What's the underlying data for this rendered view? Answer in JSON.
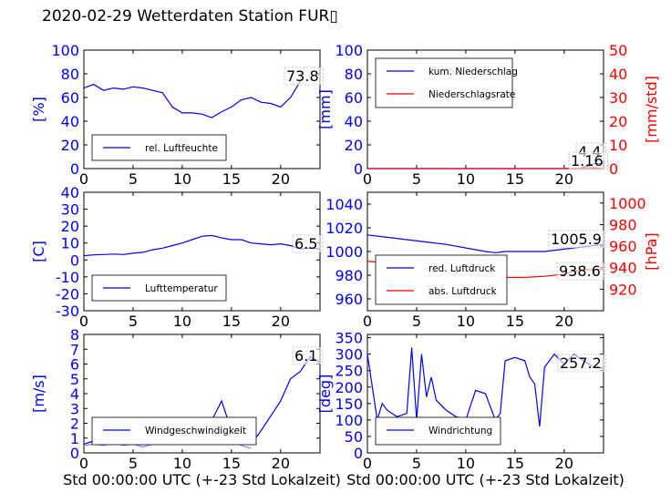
{
  "page_title": "2020-02-29 Wetterdaten Station FUR▯",
  "chart_data": [
    {
      "type": "line",
      "ylabel": "[%]",
      "xlim": [
        0,
        24
      ],
      "ylim": [
        0,
        100
      ],
      "xticks": [
        0,
        5,
        10,
        15,
        20
      ],
      "yticks": [
        0,
        20,
        40,
        60,
        80,
        100
      ],
      "annotation": "73.8",
      "legend_position": "lower-left",
      "series": [
        {
          "name": "rel. Luftfeuchte",
          "color": "#0000ff",
          "x": [
            0,
            1,
            2,
            3,
            4,
            5,
            6,
            7,
            8,
            9,
            10,
            11,
            12,
            13,
            14,
            15,
            16,
            17,
            18,
            19,
            20,
            21,
            22
          ],
          "y": [
            68,
            71,
            66,
            68,
            67,
            69,
            68,
            66,
            64,
            52,
            47,
            47,
            46,
            43,
            48,
            52,
            58,
            60,
            56,
            55,
            52,
            60,
            73.8
          ]
        }
      ]
    },
    {
      "type": "line",
      "ylabel": "[mm]",
      "ylabel_right": "[mm/std]",
      "xlim": [
        0,
        24
      ],
      "ylim": [
        0,
        100
      ],
      "ylim_right": [
        0,
        50
      ],
      "xticks": [
        0,
        5,
        10,
        15,
        20
      ],
      "yticks": [
        0,
        20,
        40,
        60,
        80,
        100
      ],
      "yticks_right": [
        0,
        10,
        20,
        30,
        40,
        50
      ],
      "annotations": [
        "4.4",
        "1.16"
      ],
      "legend_position": "upper-left",
      "series": [
        {
          "name": "kum. Niederschlag",
          "color": "#0000ff",
          "axis": "left",
          "x": [
            0,
            21.5,
            22,
            22.5,
            23,
            24
          ],
          "y": [
            0,
            0,
            1.2,
            2.8,
            4.0,
            4.4
          ]
        },
        {
          "name": "Niederschlagsrate",
          "color": "#ff0000",
          "axis": "right",
          "x": [
            0,
            21.8,
            22,
            22.2,
            22.5,
            22.8,
            23,
            24
          ],
          "y": [
            0,
            0,
            1.0,
            0,
            1.16,
            0,
            0.5,
            0
          ]
        }
      ]
    },
    {
      "type": "line",
      "ylabel": "[C]",
      "xlim": [
        0,
        24
      ],
      "ylim": [
        -30,
        40
      ],
      "xticks": [
        0,
        5,
        10,
        15,
        20
      ],
      "yticks": [
        -30,
        -20,
        -10,
        0,
        10,
        20,
        30,
        40
      ],
      "annotation": "6.5",
      "legend_position": "lower-left",
      "series": [
        {
          "name": "Lufttemperatur",
          "color": "#0000ff",
          "x": [
            0,
            1,
            2,
            3,
            4,
            5,
            6,
            7,
            8,
            9,
            10,
            11,
            12,
            13,
            14,
            15,
            16,
            17,
            18,
            19,
            20,
            21,
            22,
            23,
            24
          ],
          "y": [
            2.5,
            3,
            3.2,
            3.5,
            3.2,
            4,
            4.5,
            6,
            7,
            8.5,
            10,
            12,
            14,
            14.5,
            13,
            12,
            12,
            10,
            9.5,
            9,
            9.5,
            8.5,
            6.5,
            7,
            6.5
          ]
        }
      ]
    },
    {
      "type": "line",
      "ylabel_right": "[hPa]",
      "xlim": [
        0,
        24
      ],
      "ylim": [
        950,
        1050
      ],
      "ylim_right": [
        900,
        1010
      ],
      "xticks": [
        0,
        5,
        10,
        15,
        20
      ],
      "yticks": [
        960,
        980,
        1000,
        1020,
        1040
      ],
      "yticks_right": [
        920,
        940,
        960,
        980,
        1000
      ],
      "annotations": [
        "1005.9",
        "938.6"
      ],
      "legend_position": "lower-left",
      "series": [
        {
          "name": "red. Luftdruck",
          "color": "#0000ff",
          "axis": "left",
          "x": [
            0,
            2,
            4,
            6,
            8,
            10,
            12,
            13,
            14,
            16,
            18,
            20,
            22,
            24
          ],
          "y": [
            1014,
            1012,
            1010,
            1008,
            1006,
            1003,
            1000,
            999,
            1000,
            1000,
            1000,
            1002,
            1004,
            1005.9
          ]
        },
        {
          "name": "abs. Luftdruck",
          "color": "#ff0000",
          "axis": "right",
          "x": [
            0,
            2,
            4,
            6,
            8,
            10,
            12,
            14,
            16,
            18,
            20,
            21,
            22,
            24
          ],
          "y": [
            946,
            944,
            942,
            940,
            938,
            936,
            933,
            931,
            931,
            932,
            934,
            937,
            938,
            938.6
          ]
        }
      ]
    },
    {
      "type": "line",
      "ylabel": "[m/s]",
      "xlabel": "Std 00:00:00 UTC (+-23 Std Lokalzeit)",
      "xlim": [
        0,
        24
      ],
      "ylim": [
        0,
        8
      ],
      "xticks": [
        0,
        5,
        10,
        15,
        20
      ],
      "yticks": [
        0,
        1,
        2,
        3,
        4,
        5,
        6,
        7,
        8
      ],
      "annotation": "6.1",
      "legend_position": "lower-left",
      "series": [
        {
          "name": "Windgeschwindigkeit",
          "color": "#0000ff",
          "x": [
            0,
            1,
            2,
            3,
            4,
            5,
            6,
            7,
            8,
            9,
            10,
            11,
            12,
            13,
            14,
            15,
            16,
            17,
            18,
            19,
            20,
            21,
            22,
            23,
            24
          ],
          "y": [
            0.6,
            0.8,
            1.0,
            0.9,
            1.0,
            0.8,
            1.2,
            1.0,
            1.3,
            1.5,
            1.8,
            2.0,
            2.0,
            2.2,
            3.5,
            1.5,
            1.0,
            0.6,
            1.5,
            2.5,
            3.5,
            5.0,
            5.5,
            6.5,
            6.1
          ]
        },
        {
          "color": "#8080ff",
          "x": [
            0,
            1,
            2,
            3,
            4,
            5,
            6,
            7,
            8,
            9,
            10,
            11,
            12,
            13,
            14,
            15,
            16,
            17
          ],
          "y": [
            0.5,
            0.6,
            0.5,
            0.7,
            0.5,
            0.6,
            0.4,
            0.6,
            0.8,
            1.0,
            1.5,
            1.2,
            1.3,
            1.2,
            1.4,
            1.0,
            0.5,
            0.3
          ]
        }
      ]
    },
    {
      "type": "line",
      "ylabel": "[deg]",
      "xlabel": "Std 00:00:00 UTC (+-23 Std Lokalzeit)",
      "xlim": [
        0,
        24
      ],
      "ylim": [
        0,
        360
      ],
      "xticks": [
        0,
        5,
        10,
        15,
        20
      ],
      "yticks": [
        0,
        50,
        100,
        150,
        200,
        250,
        300,
        350
      ],
      "annotation": "257.2",
      "legend_position": "lower-left",
      "series": [
        {
          "name": "Windrichtung",
          "color": "#0000ff",
          "x": [
            0,
            0.5,
            1,
            1.5,
            2,
            3,
            4,
            4.5,
            5,
            5.5,
            6,
            6.5,
            7,
            8,
            9,
            10,
            11,
            12,
            13,
            13.5,
            14,
            15,
            16,
            16.5,
            17,
            17.5,
            18,
            19,
            20,
            21,
            22,
            23,
            24
          ],
          "y": [
            300,
            200,
            100,
            150,
            130,
            110,
            120,
            320,
            100,
            300,
            170,
            230,
            160,
            130,
            110,
            100,
            190,
            180,
            100,
            120,
            280,
            290,
            280,
            230,
            210,
            80,
            260,
            300,
            270,
            300,
            280,
            260,
            257.2
          ]
        }
      ]
    }
  ]
}
